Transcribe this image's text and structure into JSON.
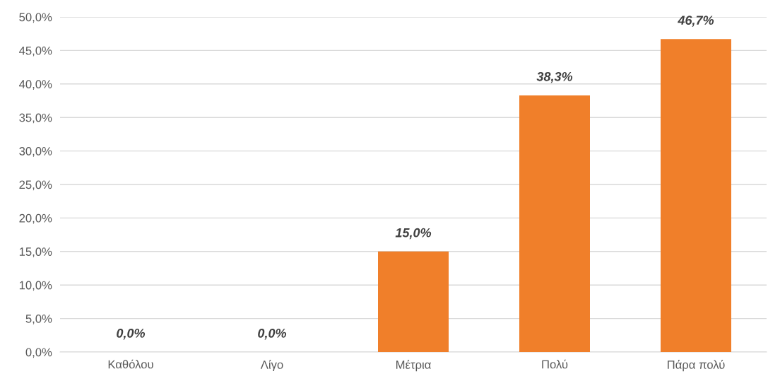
{
  "chart_data": {
    "type": "bar",
    "categories": [
      "Καθόλου",
      "Λίγο",
      "Μέτρια",
      "Πολύ",
      "Πάρα πολύ"
    ],
    "values": [
      0,
      0,
      15.0,
      38.3,
      46.7
    ],
    "value_labels": [
      "0,0%",
      "0,0%",
      "15,0%",
      "38,3%",
      "46,7%"
    ],
    "color": "#f07f2a",
    "ylim": [
      0,
      50
    ],
    "yticks": [
      {
        "value": 0,
        "label": "0,0%"
      },
      {
        "value": 5,
        "label": "5,0%"
      },
      {
        "value": 10,
        "label": "10,0%"
      },
      {
        "value": 15,
        "label": "15,0%"
      },
      {
        "value": 20,
        "label": "20,0%"
      },
      {
        "value": 25,
        "label": "25,0%"
      },
      {
        "value": 30,
        "label": "30,0%"
      },
      {
        "value": 35,
        "label": "35,0%"
      },
      {
        "value": 40,
        "label": "40,0%"
      },
      {
        "value": 45,
        "label": "45,0%"
      },
      {
        "value": 50,
        "label": "50,0%"
      }
    ],
    "grid": "y"
  }
}
